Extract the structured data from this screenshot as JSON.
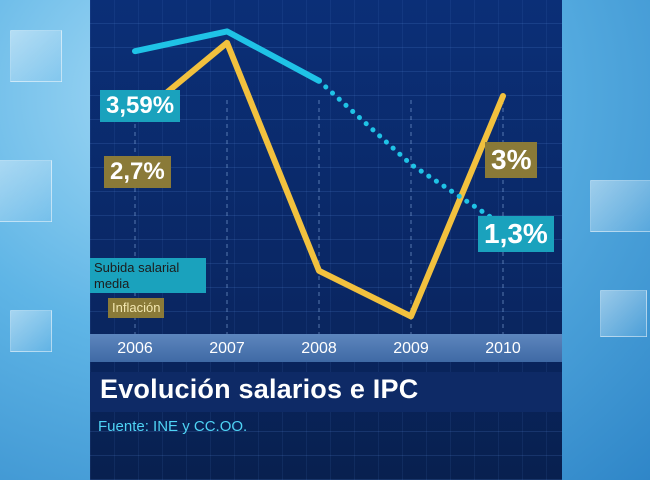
{
  "chart_data": {
    "type": "line",
    "title": "Evolución salarios e IPC",
    "source": "Fuente:  INE y CC.OO.",
    "x": [
      "2006",
      "2007",
      "2008",
      "2009",
      "2010"
    ],
    "ylim": [
      0,
      4
    ],
    "series": [
      {
        "name": "Subida salarial media",
        "color": "#1fc3e6",
        "values": [
          3.59,
          3.85,
          3.2,
          2.1,
          1.3
        ],
        "value_labels": {
          "0": "3,59%",
          "4": "1,3%"
        },
        "dotted_from_index": 2
      },
      {
        "name": "Inflación",
        "color": "#f2c13e",
        "values": [
          2.7,
          3.7,
          0.7,
          0.1,
          3.0
        ],
        "value_labels": {
          "0": "2,7%",
          "4": "3%"
        }
      }
    ],
    "legend": {
      "position": "left"
    }
  },
  "colors": {
    "salary_label_bg": "#1aa2bd",
    "inflation_label_bg": "#8a7a38",
    "legend_salary_bg": "#1aa2bd",
    "legend_inflation_bg": "#8a7a38",
    "legend_text": "#1c1c1c"
  }
}
